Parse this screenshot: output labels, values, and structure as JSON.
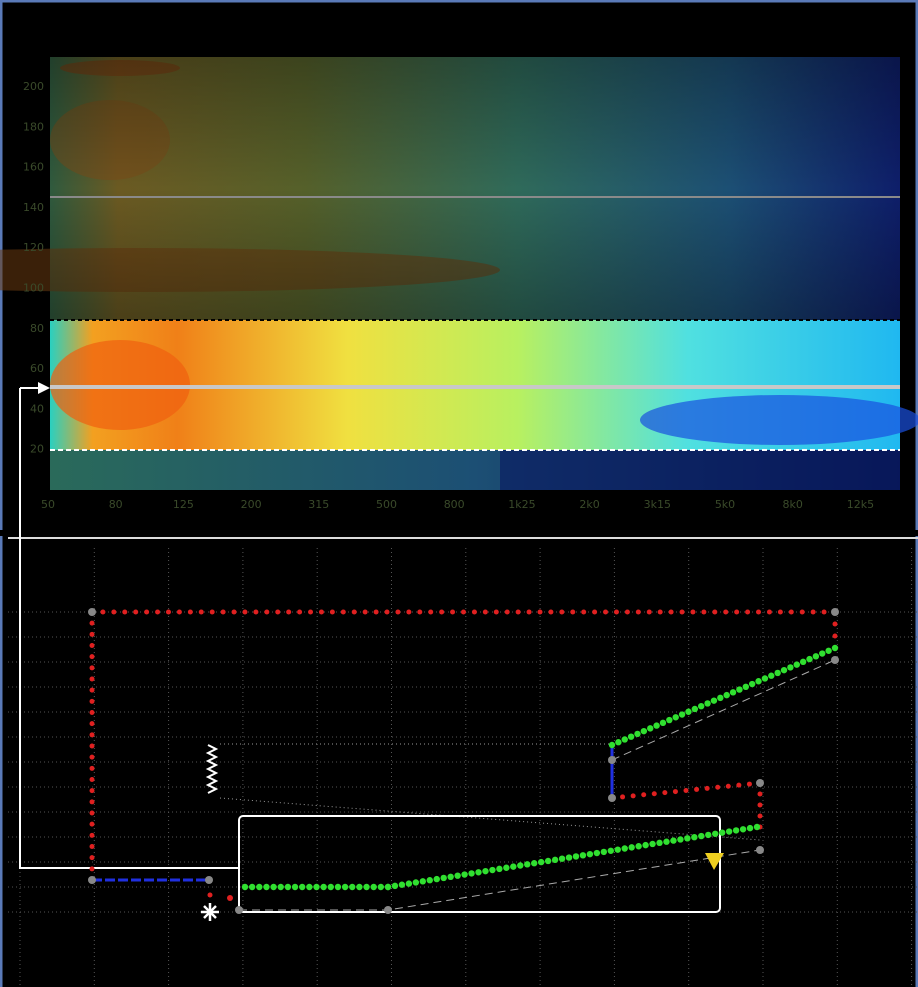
{
  "spectrogram": {
    "y_labels": [
      "200",
      "180",
      "160",
      "140",
      "120",
      "100",
      "80",
      "60",
      "40",
      "20"
    ],
    "x_labels": [
      "50",
      "80",
      "125",
      "200",
      "315",
      "500",
      "800",
      "1k25",
      "2k0",
      "3k15",
      "5k0",
      "8k0",
      "12k5"
    ]
  }
}
